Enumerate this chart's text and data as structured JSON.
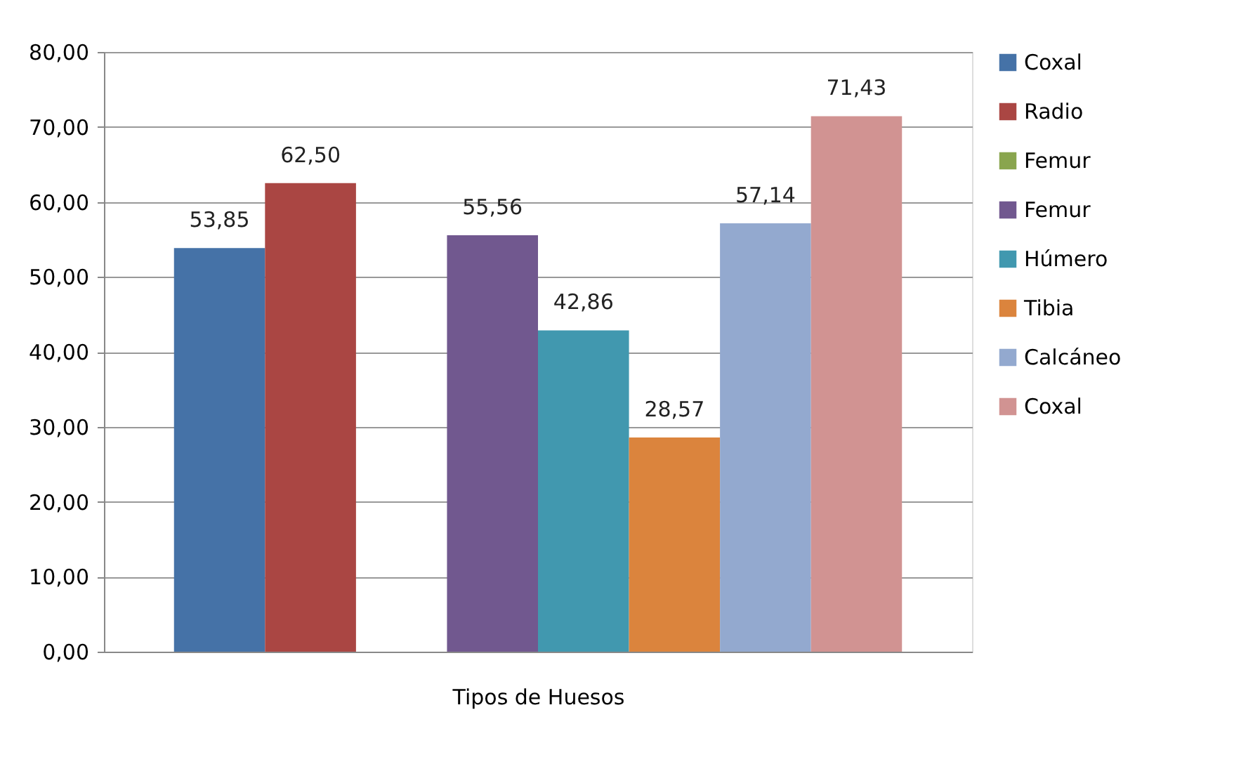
{
  "chart_data": {
    "type": "bar",
    "xlabel": "Tipos de Huesos",
    "categories": [
      null
    ],
    "series": [
      {
        "name": "Coxal",
        "color": "#4572a7",
        "values": [
          53.85
        ],
        "value_labels": [
          "53,85"
        ]
      },
      {
        "name": "Radio",
        "color": "#aa4643",
        "values": [
          62.5
        ],
        "value_labels": [
          "62,50"
        ]
      },
      {
        "name": "Femur",
        "color": "#89a54e",
        "values": [
          null
        ],
        "value_labels": [
          null
        ]
      },
      {
        "name": "Femur",
        "color": "#71588f",
        "values": [
          55.56
        ],
        "value_labels": [
          "55,56"
        ]
      },
      {
        "name": "Húmero",
        "color": "#4198af",
        "values": [
          42.86
        ],
        "value_labels": [
          "42,86"
        ]
      },
      {
        "name": "Tibia",
        "color": "#db843d",
        "values": [
          28.57
        ],
        "value_labels": [
          "28,57"
        ]
      },
      {
        "name": "Calcáneo",
        "color": "#93a9cf",
        "values": [
          57.14
        ],
        "value_labels": [
          "57,14"
        ]
      },
      {
        "name": "Coxal",
        "color": "#d19392",
        "values": [
          71.43
        ],
        "value_labels": [
          "71,43"
        ]
      }
    ],
    "ylim": [
      0,
      80
    ],
    "yticks": [
      {
        "value": 0,
        "label": "0,00"
      },
      {
        "value": 10,
        "label": "10,00"
      },
      {
        "value": 20,
        "label": "20,00"
      },
      {
        "value": 30,
        "label": "30,00"
      },
      {
        "value": 40,
        "label": "40,00"
      },
      {
        "value": 50,
        "label": "50,00"
      },
      {
        "value": 60,
        "label": "60,00"
      },
      {
        "value": 70,
        "label": "70,00"
      },
      {
        "value": 80,
        "label": "80,00"
      }
    ],
    "grid": "y",
    "legend": "right"
  }
}
